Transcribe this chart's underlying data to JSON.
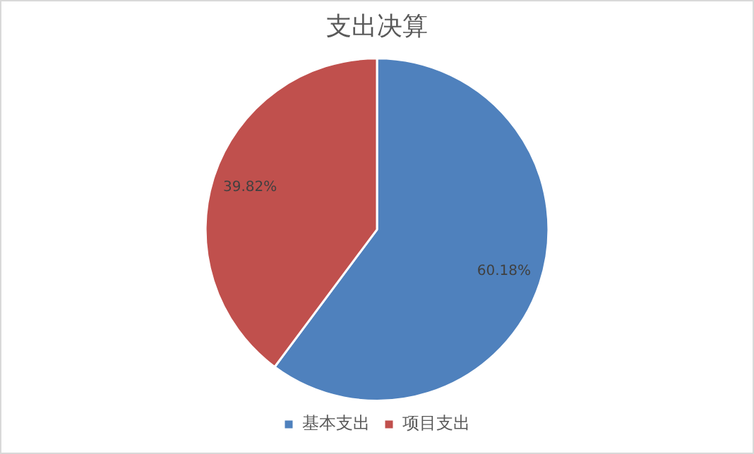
{
  "chart_data": {
    "type": "pie",
    "title": "支出决算",
    "categories": [
      "基本支出",
      "项目支出"
    ],
    "values": [
      60.18,
      39.82
    ],
    "colors": [
      "#4f81bd",
      "#c0504d"
    ],
    "value_labels": [
      "60.18%",
      "39.82%"
    ],
    "legend": "bottom"
  }
}
